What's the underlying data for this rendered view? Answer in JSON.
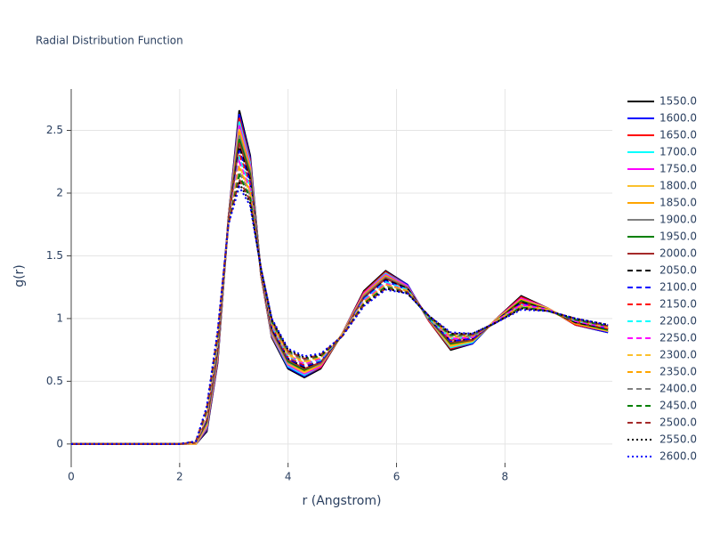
{
  "chart_data": {
    "type": "line",
    "title": "Radial Distribution Function",
    "x_label": "r (Angstrom)",
    "y_label": "g(r)",
    "x": [
      0,
      1,
      2,
      2.3,
      2.5,
      2.7,
      2.9,
      3.1,
      3.3,
      3.5,
      3.7,
      4.0,
      4.3,
      4.6,
      5.0,
      5.4,
      5.8,
      6.2,
      6.6,
      7.0,
      7.4,
      7.8,
      8.3,
      8.8,
      9.3,
      9.9
    ],
    "xlim": [
      0,
      9.98
    ],
    "ylim": [
      -0.15,
      2.83
    ],
    "xticks": [
      0,
      2,
      4,
      6,
      8
    ],
    "yticks": [
      0,
      0.5,
      1,
      1.5,
      2,
      2.5
    ],
    "grid": true,
    "legend": "right",
    "series": [
      {
        "name": "1550.0",
        "color": "#000000",
        "dash": "solid",
        "values": [
          0,
          0,
          0,
          0,
          0.1,
          0.65,
          1.8,
          2.66,
          2.3,
          1.35,
          0.85,
          0.6,
          0.53,
          0.6,
          0.88,
          1.22,
          1.38,
          1.27,
          0.98,
          0.75,
          0.8,
          0.98,
          1.18,
          1.08,
          0.95,
          0.89
        ]
      },
      {
        "name": "1600.0",
        "color": "#0000ff",
        "dash": "solid",
        "values": [
          0,
          0,
          0,
          0,
          0.11,
          0.66,
          1.8,
          2.63,
          2.28,
          1.35,
          0.86,
          0.61,
          0.54,
          0.61,
          0.88,
          1.21,
          1.37,
          1.27,
          0.98,
          0.76,
          0.8,
          0.98,
          1.17,
          1.08,
          0.95,
          0.89
        ]
      },
      {
        "name": "1650.0",
        "color": "#ff0000",
        "dash": "solid",
        "values": [
          0,
          0,
          0,
          0,
          0.12,
          0.67,
          1.8,
          2.6,
          2.26,
          1.35,
          0.86,
          0.62,
          0.55,
          0.61,
          0.88,
          1.21,
          1.37,
          1.26,
          0.98,
          0.76,
          0.81,
          0.98,
          1.17,
          1.08,
          0.95,
          0.9
        ]
      },
      {
        "name": "1700.0",
        "color": "#00ffff",
        "dash": "solid",
        "values": [
          0,
          0,
          0,
          0,
          0.13,
          0.69,
          1.79,
          2.57,
          2.24,
          1.36,
          0.87,
          0.62,
          0.55,
          0.62,
          0.88,
          1.2,
          1.36,
          1.26,
          0.99,
          0.77,
          0.81,
          0.98,
          1.16,
          1.08,
          0.96,
          0.9
        ]
      },
      {
        "name": "1750.0",
        "color": "#ff00ff",
        "dash": "solid",
        "values": [
          0,
          0,
          0,
          0,
          0.14,
          0.7,
          1.79,
          2.54,
          2.22,
          1.36,
          0.88,
          0.63,
          0.56,
          0.62,
          0.88,
          1.2,
          1.35,
          1.26,
          0.99,
          0.78,
          0.82,
          0.98,
          1.16,
          1.08,
          0.96,
          0.9
        ]
      },
      {
        "name": "1800.0",
        "color": "#fbc02d",
        "dash": "solid",
        "values": [
          0,
          0,
          0,
          0,
          0.15,
          0.71,
          1.79,
          2.51,
          2.2,
          1.36,
          0.89,
          0.64,
          0.57,
          0.63,
          0.88,
          1.19,
          1.34,
          1.25,
          0.99,
          0.78,
          0.82,
          0.98,
          1.15,
          1.08,
          0.96,
          0.9
        ]
      },
      {
        "name": "1850.0",
        "color": "#ffa500",
        "dash": "solid",
        "values": [
          0,
          0,
          0,
          0.01,
          0.16,
          0.72,
          1.79,
          2.49,
          2.19,
          1.36,
          0.89,
          0.65,
          0.58,
          0.63,
          0.87,
          1.19,
          1.34,
          1.25,
          0.99,
          0.79,
          0.82,
          0.97,
          1.15,
          1.07,
          0.96,
          0.91
        ]
      },
      {
        "name": "1900.0",
        "color": "#808080",
        "dash": "solid",
        "values": [
          0,
          0,
          0,
          0.01,
          0.17,
          0.73,
          1.78,
          2.46,
          2.17,
          1.37,
          0.9,
          0.65,
          0.59,
          0.64,
          0.87,
          1.18,
          1.33,
          1.25,
          0.99,
          0.8,
          0.83,
          0.97,
          1.14,
          1.07,
          0.97,
          0.91
        ]
      },
      {
        "name": "1950.0",
        "color": "#008000",
        "dash": "solid",
        "values": [
          0,
          0,
          0,
          0.01,
          0.18,
          0.75,
          1.78,
          2.43,
          2.15,
          1.37,
          0.91,
          0.66,
          0.59,
          0.65,
          0.87,
          1.17,
          1.32,
          1.24,
          1.0,
          0.8,
          0.83,
          0.97,
          1.14,
          1.07,
          0.97,
          0.91
        ]
      },
      {
        "name": "2000.0",
        "color": "#a52a2a",
        "dash": "solid",
        "values": [
          0,
          0,
          0,
          0.01,
          0.19,
          0.76,
          1.78,
          2.4,
          2.13,
          1.37,
          0.91,
          0.67,
          0.6,
          0.65,
          0.87,
          1.17,
          1.32,
          1.24,
          1.0,
          0.81,
          0.83,
          0.97,
          1.13,
          1.07,
          0.97,
          0.92
        ]
      },
      {
        "name": "2050.0",
        "color": "#000000",
        "dash": "dash",
        "values": [
          0,
          0,
          0,
          0.01,
          0.2,
          0.77,
          1.78,
          2.37,
          2.11,
          1.37,
          0.92,
          0.68,
          0.61,
          0.66,
          0.87,
          1.16,
          1.31,
          1.24,
          1.0,
          0.82,
          0.84,
          0.97,
          1.13,
          1.07,
          0.97,
          0.92
        ]
      },
      {
        "name": "2100.0",
        "color": "#0000ff",
        "dash": "dash",
        "values": [
          0,
          0,
          0,
          0.01,
          0.2,
          0.78,
          1.77,
          2.34,
          2.09,
          1.38,
          0.93,
          0.68,
          0.62,
          0.66,
          0.87,
          1.16,
          1.3,
          1.23,
          1.0,
          0.82,
          0.84,
          0.97,
          1.12,
          1.07,
          0.98,
          0.92
        ]
      },
      {
        "name": "2150.0",
        "color": "#ff0000",
        "dash": "dash",
        "values": [
          0,
          0,
          0,
          0.01,
          0.21,
          0.79,
          1.77,
          2.31,
          2.07,
          1.38,
          0.94,
          0.69,
          0.63,
          0.67,
          0.87,
          1.15,
          1.29,
          1.23,
          1.0,
          0.83,
          0.85,
          0.97,
          1.12,
          1.07,
          0.98,
          0.92
        ]
      },
      {
        "name": "2200.0",
        "color": "#00ffff",
        "dash": "dash",
        "values": [
          0,
          0,
          0,
          0.01,
          0.22,
          0.8,
          1.77,
          2.28,
          2.05,
          1.38,
          0.94,
          0.7,
          0.64,
          0.67,
          0.87,
          1.15,
          1.29,
          1.23,
          1.0,
          0.84,
          0.85,
          0.97,
          1.11,
          1.07,
          0.98,
          0.93
        ]
      },
      {
        "name": "2250.0",
        "color": "#ff00ff",
        "dash": "dash",
        "values": [
          0,
          0,
          0,
          0.01,
          0.23,
          0.82,
          1.77,
          2.25,
          2.03,
          1.38,
          0.95,
          0.71,
          0.64,
          0.68,
          0.87,
          1.14,
          1.28,
          1.22,
          1.01,
          0.84,
          0.85,
          0.97,
          1.11,
          1.07,
          0.98,
          0.93
        ]
      },
      {
        "name": "2300.0",
        "color": "#fbc02d",
        "dash": "dash",
        "values": [
          0,
          0,
          0,
          0.01,
          0.24,
          0.83,
          1.76,
          2.22,
          2.01,
          1.39,
          0.96,
          0.71,
          0.65,
          0.69,
          0.87,
          1.13,
          1.27,
          1.22,
          1.01,
          0.85,
          0.86,
          0.97,
          1.1,
          1.07,
          0.99,
          0.93
        ]
      },
      {
        "name": "2350.0",
        "color": "#ffa500",
        "dash": "dash",
        "values": [
          0,
          0,
          0,
          0.02,
          0.25,
          0.84,
          1.76,
          2.2,
          2.0,
          1.39,
          0.96,
          0.72,
          0.66,
          0.69,
          0.86,
          1.13,
          1.27,
          1.22,
          1.01,
          0.86,
          0.86,
          0.96,
          1.1,
          1.06,
          0.99,
          0.94
        ]
      },
      {
        "name": "2400.0",
        "color": "#808080",
        "dash": "dash",
        "values": [
          0,
          0,
          0,
          0.02,
          0.26,
          0.85,
          1.76,
          2.17,
          1.98,
          1.39,
          0.97,
          0.73,
          0.67,
          0.7,
          0.86,
          1.12,
          1.26,
          1.21,
          1.01,
          0.86,
          0.86,
          0.96,
          1.09,
          1.06,
          0.99,
          0.94
        ]
      },
      {
        "name": "2450.0",
        "color": "#008000",
        "dash": "dash",
        "values": [
          0,
          0,
          0,
          0.02,
          0.27,
          0.86,
          1.76,
          2.14,
          1.96,
          1.39,
          0.98,
          0.74,
          0.68,
          0.7,
          0.86,
          1.12,
          1.25,
          1.21,
          1.01,
          0.87,
          0.87,
          0.96,
          1.09,
          1.06,
          0.99,
          0.94
        ]
      },
      {
        "name": "2500.0",
        "color": "#a52a2a",
        "dash": "dash",
        "values": [
          0,
          0,
          0,
          0.02,
          0.28,
          0.88,
          1.75,
          2.11,
          1.94,
          1.4,
          0.99,
          0.74,
          0.68,
          0.71,
          0.86,
          1.11,
          1.24,
          1.21,
          1.02,
          0.88,
          0.87,
          0.96,
          1.08,
          1.06,
          1.0,
          0.94
        ]
      },
      {
        "name": "2550.0",
        "color": "#000000",
        "dash": "dot",
        "values": [
          0,
          0,
          0,
          0.02,
          0.29,
          0.89,
          1.75,
          2.08,
          1.92,
          1.4,
          0.99,
          0.75,
          0.69,
          0.71,
          0.86,
          1.11,
          1.24,
          1.2,
          1.02,
          0.88,
          0.88,
          0.96,
          1.08,
          1.06,
          1.0,
          0.95
        ]
      },
      {
        "name": "2600.0",
        "color": "#0000ff",
        "dash": "dot",
        "values": [
          0,
          0,
          0,
          0.02,
          0.3,
          0.9,
          1.75,
          2.05,
          1.9,
          1.4,
          1.0,
          0.76,
          0.7,
          0.72,
          0.86,
          1.1,
          1.23,
          1.2,
          1.02,
          0.89,
          0.88,
          0.96,
          1.07,
          1.06,
          1.0,
          0.95
        ]
      }
    ]
  }
}
